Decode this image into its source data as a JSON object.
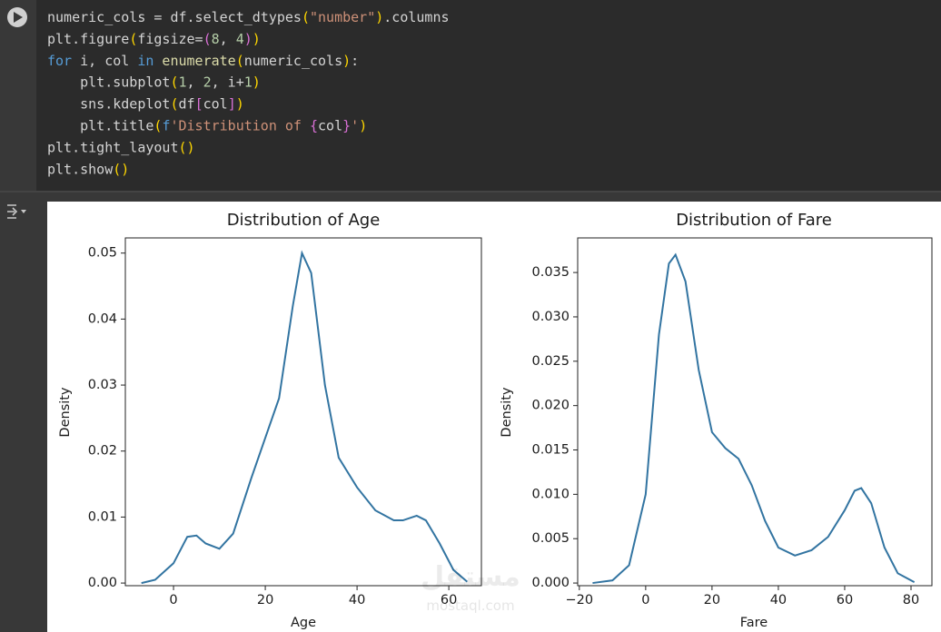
{
  "code": {
    "lines": [
      [
        {
          "text": "numeric_cols = df.select_dtypes",
          "color": "#d4d4d4"
        },
        {
          "text": "(",
          "color": "#ffd700"
        },
        {
          "text": "\"number\"",
          "color": "#ce9178"
        },
        {
          "text": ")",
          "color": "#ffd700"
        },
        {
          "text": ".columns",
          "color": "#d4d4d4"
        }
      ],
      [
        {
          "text": "plt.figure",
          "color": "#d4d4d4"
        },
        {
          "text": "(",
          "color": "#ffd700"
        },
        {
          "text": "figsize=",
          "color": "#d4d4d4"
        },
        {
          "text": "(",
          "color": "#da70d6"
        },
        {
          "text": "8",
          "color": "#b5cea8"
        },
        {
          "text": ", ",
          "color": "#d4d4d4"
        },
        {
          "text": "4",
          "color": "#b5cea8"
        },
        {
          "text": ")",
          "color": "#da70d6"
        },
        {
          "text": ")",
          "color": "#ffd700"
        }
      ],
      [
        {
          "text": "for",
          "color": "#569cd6"
        },
        {
          "text": " i, col ",
          "color": "#d4d4d4"
        },
        {
          "text": "in",
          "color": "#569cd6"
        },
        {
          "text": " enumerate",
          "color": "#dcdcaa"
        },
        {
          "text": "(",
          "color": "#ffd700"
        },
        {
          "text": "numeric_cols",
          "color": "#d4d4d4"
        },
        {
          "text": ")",
          "color": "#ffd700"
        },
        {
          "text": ":",
          "color": "#d4d4d4"
        }
      ],
      [
        {
          "text": "    plt.subplot",
          "color": "#d4d4d4"
        },
        {
          "text": "(",
          "color": "#ffd700"
        },
        {
          "text": "1",
          "color": "#b5cea8"
        },
        {
          "text": ", ",
          "color": "#d4d4d4"
        },
        {
          "text": "2",
          "color": "#b5cea8"
        },
        {
          "text": ", i+",
          "color": "#d4d4d4"
        },
        {
          "text": "1",
          "color": "#b5cea8"
        },
        {
          "text": ")",
          "color": "#ffd700"
        }
      ],
      [
        {
          "text": "    sns.kdeplot",
          "color": "#d4d4d4"
        },
        {
          "text": "(",
          "color": "#ffd700"
        },
        {
          "text": "df",
          "color": "#d4d4d4"
        },
        {
          "text": "[",
          "color": "#da70d6"
        },
        {
          "text": "col",
          "color": "#d4d4d4"
        },
        {
          "text": "]",
          "color": "#da70d6"
        },
        {
          "text": ")",
          "color": "#ffd700"
        }
      ],
      [
        {
          "text": "    plt.title",
          "color": "#d4d4d4"
        },
        {
          "text": "(",
          "color": "#ffd700"
        },
        {
          "text": "f",
          "color": "#569cd6"
        },
        {
          "text": "'Distribution of ",
          "color": "#ce9178"
        },
        {
          "text": "{",
          "color": "#da70d6"
        },
        {
          "text": "col",
          "color": "#d4d4d4"
        },
        {
          "text": "}",
          "color": "#da70d6"
        },
        {
          "text": "'",
          "color": "#ce9178"
        },
        {
          "text": ")",
          "color": "#ffd700"
        }
      ],
      [
        {
          "text": "plt.tight_layout",
          "color": "#d4d4d4"
        },
        {
          "text": "()",
          "color": "#ffd700"
        }
      ],
      [
        {
          "text": "plt.show",
          "color": "#d4d4d4"
        },
        {
          "text": "()",
          "color": "#ffd700"
        }
      ]
    ]
  },
  "watermark": {
    "logo": "مستقل",
    "site": "mostaql.com"
  },
  "chart_data": [
    {
      "type": "line",
      "title": "Distribution of Age",
      "x_label": "Age",
      "y_label": "Density",
      "color": "#3274a1",
      "x": [
        -7,
        -4,
        0,
        3,
        5,
        7,
        10,
        13,
        17,
        20,
        23,
        26,
        28,
        30,
        33,
        36,
        40,
        44,
        48,
        50,
        53,
        55,
        58,
        61,
        64
      ],
      "values": [
        0.0,
        0.0005,
        0.003,
        0.007,
        0.0072,
        0.006,
        0.0052,
        0.0075,
        0.016,
        0.022,
        0.028,
        0.042,
        0.05,
        0.047,
        0.03,
        0.019,
        0.0145,
        0.011,
        0.0095,
        0.0095,
        0.0102,
        0.0095,
        0.006,
        0.002,
        0.0002
      ],
      "xlim": [
        -10.5,
        67.1
      ],
      "ylim": [
        -0.0004,
        0.0523
      ],
      "xticks": [
        0,
        20,
        40,
        60
      ],
      "yticks": [
        {
          "value": 0,
          "label": "0.00"
        },
        {
          "value": 0.01,
          "label": "0.01"
        },
        {
          "value": 0.02,
          "label": "0.02"
        },
        {
          "value": 0.03,
          "label": "0.03"
        },
        {
          "value": 0.04,
          "label": "0.04"
        },
        {
          "value": 0.05,
          "label": "0.05"
        }
      ]
    },
    {
      "type": "line",
      "title": "Distribution of Fare",
      "x_label": "Fare",
      "y_label": "Density",
      "color": "#3274a1",
      "x": [
        -16,
        -10,
        -5,
        0,
        4,
        7,
        9,
        12,
        16,
        20,
        24,
        28,
        32,
        36,
        40,
        45,
        50,
        55,
        60,
        63,
        65,
        68,
        72,
        76,
        81
      ],
      "values": [
        0.0,
        0.0003,
        0.002,
        0.01,
        0.028,
        0.036,
        0.037,
        0.034,
        0.024,
        0.017,
        0.0152,
        0.014,
        0.011,
        0.007,
        0.004,
        0.0031,
        0.0037,
        0.0052,
        0.0082,
        0.0104,
        0.0107,
        0.009,
        0.004,
        0.0011,
        0.0001
      ],
      "xlim": [
        -20.5,
        86.3
      ],
      "ylim": [
        -0.0003,
        0.0389
      ],
      "xticks": [
        {
          "value": -20,
          "label": "−20"
        },
        0,
        20,
        40,
        60,
        80
      ],
      "yticks": [
        {
          "value": 0,
          "label": "0.000"
        },
        {
          "value": 0.005,
          "label": "0.005"
        },
        {
          "value": 0.01,
          "label": "0.010"
        },
        {
          "value": 0.015,
          "label": "0.015"
        },
        {
          "value": 0.02,
          "label": "0.020"
        },
        {
          "value": 0.025,
          "label": "0.025"
        },
        {
          "value": 0.03,
          "label": "0.030"
        },
        {
          "value": 0.035,
          "label": "0.035"
        }
      ]
    }
  ]
}
